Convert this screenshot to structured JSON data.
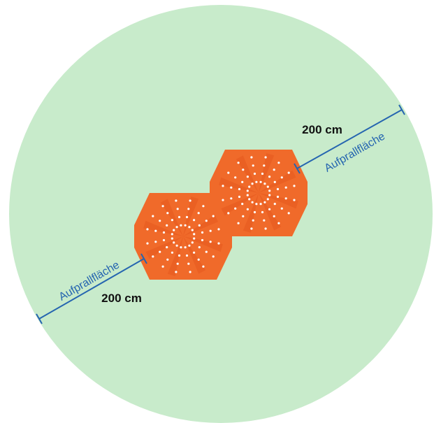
{
  "colors": {
    "impact_zone": "#c8ebcb",
    "device": "#f06a2a",
    "device_inner": "#e5571e",
    "dots": "#ffffff",
    "measure_line": "#2565b0",
    "dim_text": "#111111"
  },
  "labels": {
    "impact_area_left": "Aufprallfläche",
    "impact_area_right": "Aufprallfläche",
    "distance_left": "200 cm",
    "distance_right": "200 cm"
  }
}
